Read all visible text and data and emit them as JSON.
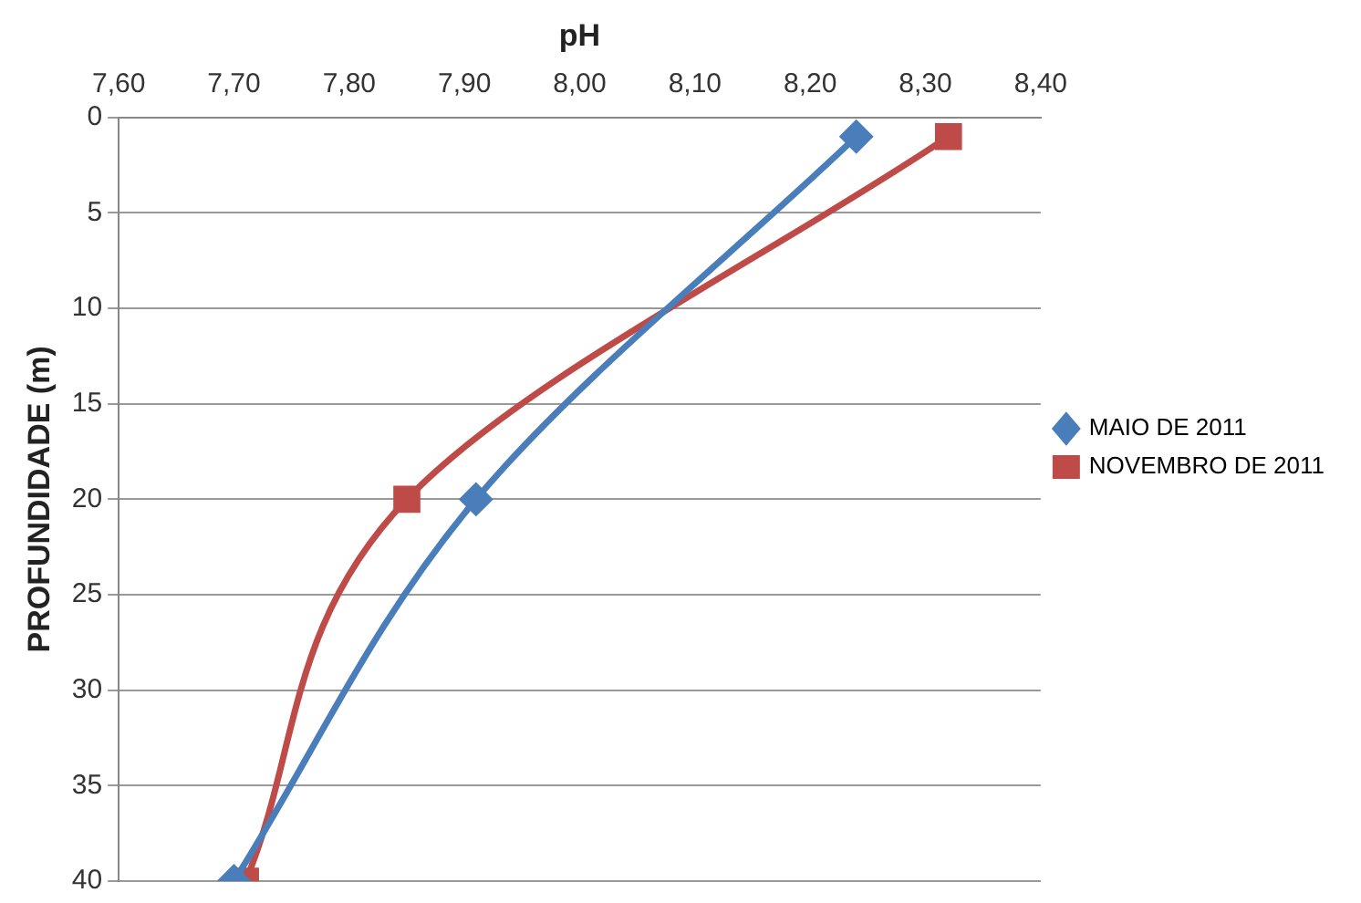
{
  "chart_data": {
    "type": "line",
    "xlabel": "pH",
    "ylabel": "PROFUNDIDADE (m)",
    "series": [
      {
        "name": "MAIO DE 2011",
        "color": "#4a7ebb",
        "marker": "diamond",
        "x": [
          8.24,
          7.91,
          7.7
        ],
        "values": [
          1,
          20,
          40
        ]
      },
      {
        "name": "NOVEMBRO DE 2011",
        "color": "#be4b48",
        "marker": "square",
        "x": [
          8.32,
          7.85,
          7.71
        ],
        "values": [
          1,
          20,
          40
        ]
      }
    ],
    "xlim": [
      7.6,
      8.4
    ],
    "xticks": [
      {
        "value": 7.6,
        "label": "7,60"
      },
      {
        "value": 7.7,
        "label": "7,70"
      },
      {
        "value": 7.8,
        "label": "7,80"
      },
      {
        "value": 7.9,
        "label": "7,90"
      },
      {
        "value": 8.0,
        "label": "8,00"
      },
      {
        "value": 8.1,
        "label": "8,10"
      },
      {
        "value": 8.2,
        "label": "8,20"
      },
      {
        "value": 8.3,
        "label": "8,30"
      },
      {
        "value": 8.4,
        "label": "8,40"
      }
    ],
    "ylim": [
      40,
      0
    ],
    "yticks": [
      0,
      5,
      10,
      15,
      20,
      25,
      30,
      35,
      40
    ],
    "grid": "y",
    "legend": "right"
  }
}
